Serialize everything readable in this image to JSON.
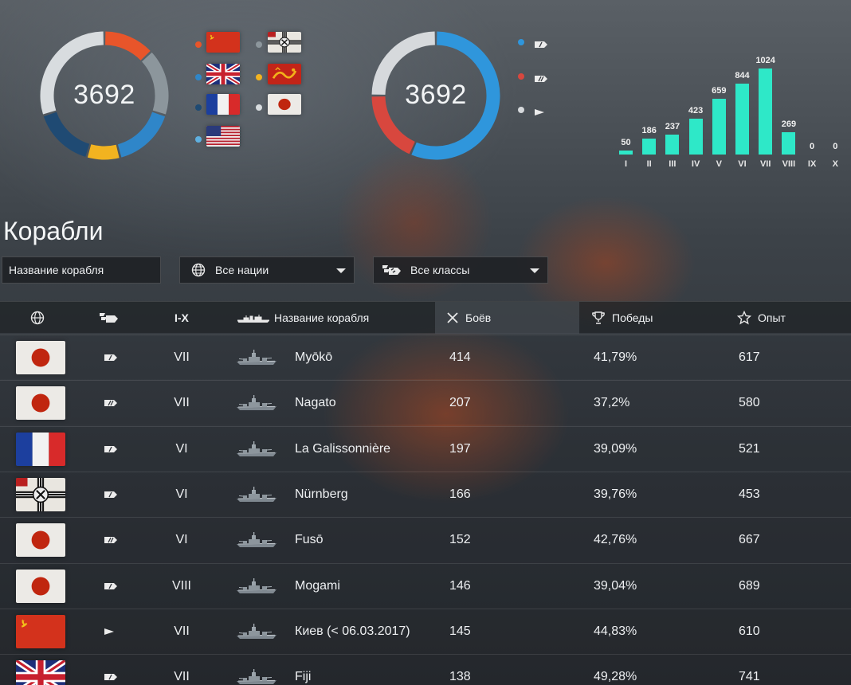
{
  "nations_chart": {
    "total": "3692",
    "segments": [
      {
        "color": "#e8552a",
        "frac": 0.13
      },
      {
        "color": "#8c969c",
        "frac": 0.17
      },
      {
        "color": "#2f86c9",
        "frac": 0.16
      },
      {
        "color": "#f2b320",
        "frac": 0.085
      },
      {
        "color": "#1f4a73",
        "frac": 0.155
      },
      {
        "color": "#d8dcdf",
        "frac": 0.3
      }
    ],
    "legend": [
      {
        "dot": "#e8552a",
        "flag": "ussr"
      },
      {
        "dot": "#8c969c",
        "flag": "germany"
      },
      {
        "dot": "#2f86c9",
        "flag": "uk"
      },
      {
        "dot": "#f2b320",
        "flag": "pan-asia"
      },
      {
        "dot": "#1f4a73",
        "flag": "france"
      },
      {
        "dot": "#d8dcdf",
        "flag": "japan"
      },
      {
        "dot": "#5fb0e0",
        "flag": "usa"
      }
    ]
  },
  "classes_chart": {
    "total": "3692",
    "segments": [
      {
        "color": "#2f96dc",
        "frac": 0.565
      },
      {
        "color": "#d8473e",
        "frac": 0.185
      },
      {
        "color": "#d6d9dc",
        "frac": 0.25
      }
    ],
    "legend": [
      {
        "dot": "#2f96dc",
        "icon": "cruiser-icon"
      },
      {
        "dot": "#d8473e",
        "icon": "battleship-icon"
      },
      {
        "dot": "#d6d9dc",
        "icon": "destroyer-icon"
      }
    ]
  },
  "chart_data": {
    "type": "bar",
    "categories": [
      "I",
      "II",
      "III",
      "IV",
      "V",
      "VI",
      "VII",
      "VIII",
      "IX",
      "X"
    ],
    "values": [
      50,
      186,
      237,
      423,
      659,
      844,
      1024,
      269,
      0,
      0
    ],
    "color": "#2ee8c8"
  },
  "page": {
    "title": "Корабли",
    "search_placeholder": "Название корабля",
    "nation_filter": "Все нации",
    "class_filter": "Все классы"
  },
  "table": {
    "headers": {
      "nation": "",
      "class": "",
      "tier": "I-X",
      "ship": "Название корабля",
      "battles": "Боёв",
      "wins": "Победы",
      "exp": "Опыт"
    },
    "rows": [
      {
        "flag": "japan",
        "cls": "cruiser-icon",
        "tier": "VII",
        "name": "Myōkō",
        "battles": "414",
        "wins": "41,79%",
        "exp": "617"
      },
      {
        "flag": "japan",
        "cls": "battleship-icon",
        "tier": "VII",
        "name": "Nagato",
        "battles": "207",
        "wins": "37,2%",
        "exp": "580"
      },
      {
        "flag": "france",
        "cls": "cruiser-icon",
        "tier": "VI",
        "name": "La Galissonnière",
        "battles": "197",
        "wins": "39,09%",
        "exp": "521"
      },
      {
        "flag": "germany",
        "cls": "cruiser-icon",
        "tier": "VI",
        "name": "Nürnberg",
        "battles": "166",
        "wins": "39,76%",
        "exp": "453"
      },
      {
        "flag": "japan",
        "cls": "battleship-icon",
        "tier": "VI",
        "name": "Fusō",
        "battles": "152",
        "wins": "42,76%",
        "exp": "667"
      },
      {
        "flag": "japan",
        "cls": "cruiser-icon",
        "tier": "VIII",
        "name": "Mogami",
        "battles": "146",
        "wins": "39,04%",
        "exp": "689"
      },
      {
        "flag": "ussr",
        "cls": "destroyer-icon",
        "tier": "VII",
        "name": "Киев (< 06.03.2017)",
        "battles": "145",
        "wins": "44,83%",
        "exp": "610"
      },
      {
        "flag": "uk",
        "cls": "cruiser-icon",
        "tier": "VII",
        "name": "Fiji",
        "battles": "138",
        "wins": "49,28%",
        "exp": "741"
      }
    ]
  }
}
